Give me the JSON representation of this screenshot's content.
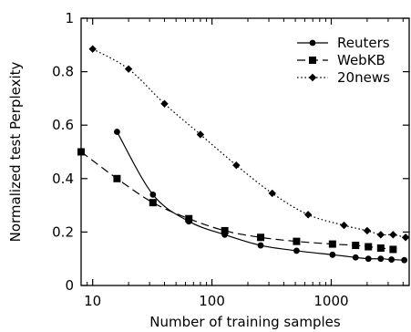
{
  "chart_data": {
    "type": "line",
    "xlabel": "Number of training samples",
    "ylabel": "Normalized test Perplexity",
    "xscale": "log",
    "xlim": [
      8,
      4500
    ],
    "ylim": [
      0,
      1
    ],
    "xticks": [
      10,
      100,
      1000
    ],
    "xtick_labels": [
      "10",
      "100",
      "1000"
    ],
    "yticks": [
      0,
      0.2,
      0.4,
      0.6,
      0.8,
      1
    ],
    "ytick_labels": [
      "0",
      "0.2",
      "0.4",
      "0.6",
      "0.8",
      "1"
    ],
    "grid": false,
    "legend_position": "top-right",
    "series": [
      {
        "name": "Reuters",
        "marker": "circle",
        "line_style": "solid",
        "color": "#000000",
        "x": [
          16,
          32,
          64,
          128,
          256,
          512,
          1024,
          1600,
          2048,
          2600,
          3200,
          4096
        ],
        "y": [
          0.575,
          0.34,
          0.24,
          0.19,
          0.15,
          0.13,
          0.115,
          0.105,
          0.1,
          0.1,
          0.097,
          0.095
        ]
      },
      {
        "name": "WebKB",
        "marker": "square",
        "line_style": "dashed",
        "color": "#000000",
        "x": [
          8,
          16,
          32,
          64,
          128,
          256,
          512,
          1024,
          1600,
          2048,
          2600,
          3300
        ],
        "y": [
          0.5,
          0.4,
          0.31,
          0.25,
          0.205,
          0.18,
          0.165,
          0.155,
          0.15,
          0.145,
          0.14,
          0.135
        ]
      },
      {
        "name": "20news",
        "marker": "diamond",
        "line_style": "dotted",
        "color": "#000000",
        "x": [
          10,
          20,
          40,
          80,
          160,
          320,
          640,
          1280,
          2000,
          2600,
          3300,
          4200
        ],
        "y": [
          0.885,
          0.81,
          0.68,
          0.565,
          0.45,
          0.345,
          0.265,
          0.225,
          0.205,
          0.19,
          0.19,
          0.18
        ]
      }
    ]
  }
}
